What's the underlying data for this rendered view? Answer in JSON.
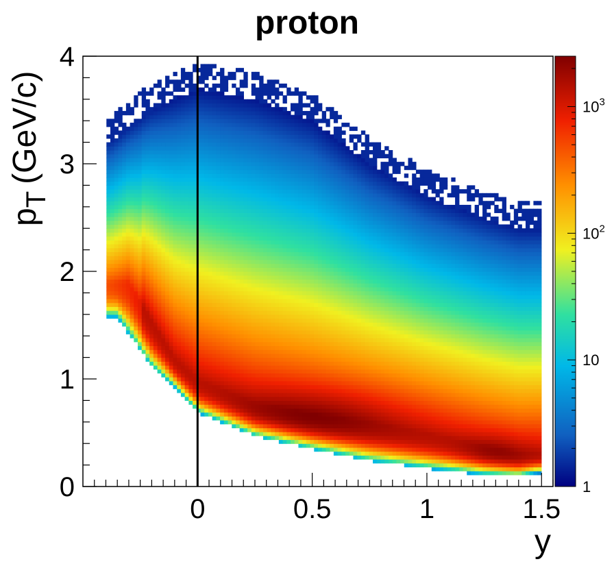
{
  "chart_data": {
    "type": "heatmap",
    "title": "proton",
    "xlabel": "y",
    "ylabel_main": "p",
    "ylabel_sub": "T",
    "ylabel_unit": "(GeV/c)",
    "xlim": [
      -0.5,
      1.55
    ],
    "ylim": [
      0,
      4
    ],
    "x_ticks": [
      0,
      0.5,
      1,
      1.5
    ],
    "x_tick_labels": [
      "0",
      "0.5",
      "1",
      "1.5"
    ],
    "y_ticks": [
      0,
      1,
      2,
      3,
      4
    ],
    "y_tick_labels": [
      "0",
      "1",
      "2",
      "3",
      "4"
    ],
    "colorbar": {
      "scale": "log",
      "zlim": [
        1,
        2500
      ],
      "ticks": [
        {
          "value": 1,
          "base": "1",
          "exp": ""
        },
        {
          "value": 10,
          "base": "10",
          "exp": ""
        },
        {
          "value": 100,
          "base": "10",
          "exp": "2"
        },
        {
          "value": 1000,
          "base": "10",
          "exp": "3"
        }
      ]
    },
    "vertical_line_x": 0,
    "density_model": {
      "lower_edge": [
        [
          -0.35,
          1.6
        ],
        [
          -0.2,
          1.15
        ],
        [
          -0.1,
          0.95
        ],
        [
          0,
          0.72
        ],
        [
          0.25,
          0.5
        ],
        [
          0.5,
          0.38
        ],
        [
          0.75,
          0.27
        ],
        [
          1.0,
          0.2
        ],
        [
          1.25,
          0.14
        ],
        [
          1.4,
          0.12
        ],
        [
          1.48,
          0.15
        ]
      ],
      "ridge": [
        [
          -0.3,
          1.9
        ],
        [
          -0.2,
          1.55
        ],
        [
          -0.1,
          1.2
        ],
        [
          0,
          1.0
        ],
        [
          0.25,
          0.78
        ],
        [
          0.5,
          0.68
        ],
        [
          0.75,
          0.6
        ],
        [
          1.0,
          0.5
        ],
        [
          1.25,
          0.38
        ],
        [
          1.4,
          0.32
        ]
      ],
      "upper_edge": [
        [
          -0.38,
          3.3
        ],
        [
          -0.2,
          3.6
        ],
        [
          0,
          3.8
        ],
        [
          0.25,
          3.7
        ],
        [
          0.5,
          3.5
        ],
        [
          0.75,
          3.1
        ],
        [
          1.0,
          2.8
        ],
        [
          1.25,
          2.6
        ],
        [
          1.4,
          2.5
        ]
      ],
      "x_max": 1.5,
      "peak_count": 2500
    }
  }
}
